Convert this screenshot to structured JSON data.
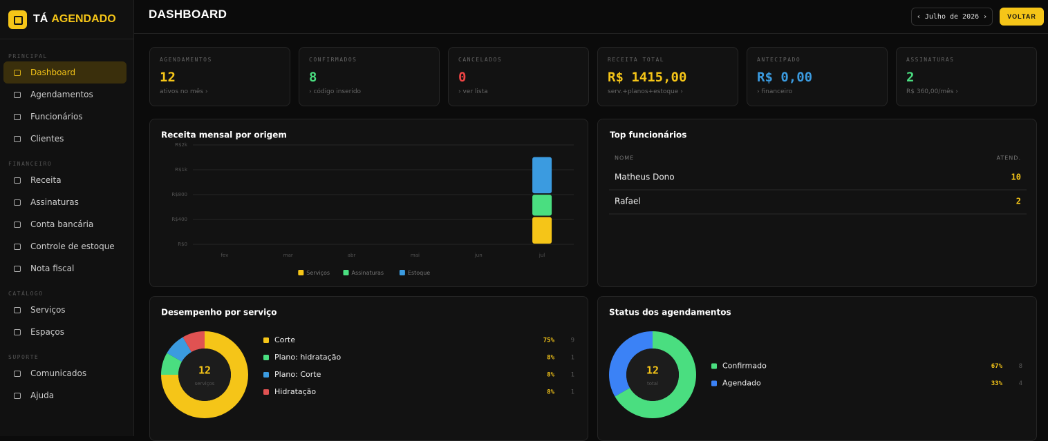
{
  "sidebar": {
    "brand": {
      "prefix": "TÁ",
      "name": "AGENDADO"
    },
    "sections": [
      {
        "title": "PRINCIPAL",
        "items": [
          "Dashboard",
          "Agendamentos",
          "Funcionários",
          "Clientes"
        ]
      },
      {
        "title": "FINANCEIRO",
        "items": [
          "Receita",
          "Assinaturas",
          "Conta bancária",
          "Controle de estoque",
          "Nota fiscal"
        ]
      },
      {
        "title": "CATÁLOGO",
        "items": [
          "Serviços",
          "Espaços"
        ]
      },
      {
        "title": "SUPORTE",
        "items": [
          "Comunicados",
          "Ajuda"
        ]
      }
    ]
  },
  "header": {
    "title": "DASHBOARD",
    "period": "Julho de 2026",
    "button": "VOLTAR"
  },
  "kpis": [
    {
      "label": "AGENDAMENTOS",
      "value": "12",
      "sub": "ativos no mês ›",
      "color": "#f5c518"
    },
    {
      "label": "CONFIRMADOS",
      "value": "8",
      "sub": "› código inserido",
      "color": "#4ade80"
    },
    {
      "label": "CANCELADOS",
      "value": "0",
      "sub": "› ver lista",
      "color": "#ef4444"
    },
    {
      "label": "RECEITA TOTAL",
      "value": "R$ 1415,00",
      "sub": "serv.+planos+estoque ›",
      "color": "#f5c518"
    },
    {
      "label": "ANTECIPADO",
      "value": "R$ 0,00",
      "sub": "› financeiro",
      "color": "#3b9be0"
    },
    {
      "label": "ASSINATURAS",
      "value": "2",
      "sub": "R$ 360,00/mês ›",
      "color": "#4ade80"
    }
  ],
  "top_employees": {
    "title": "Top funcionários",
    "columns": [
      "NOME",
      "ATEND."
    ],
    "rows": [
      [
        "Matheus Dono",
        "10"
      ],
      [
        "Rafael",
        "2"
      ]
    ]
  },
  "chart_data": [
    {
      "type": "bar",
      "stacked": true,
      "title": "Receita mensal por origem",
      "categories": [
        "fev",
        "mar",
        "abr",
        "mai",
        "jun",
        "jul"
      ],
      "series": [
        {
          "name": "Serviços",
          "color": "#f5c518",
          "values": [
            0,
            0,
            0,
            0,
            0,
            450
          ]
        },
        {
          "name": "Assinaturas",
          "color": "#4ade80",
          "values": [
            0,
            0,
            0,
            0,
            0,
            360
          ]
        },
        {
          "name": "Estoque",
          "color": "#3b9be0",
          "values": [
            0,
            0,
            0,
            0,
            0,
            605
          ]
        }
      ],
      "ylim": [
        0,
        1600
      ],
      "yticks": [
        {
          "value": 0,
          "label": "R$0"
        },
        {
          "value": 400,
          "label": "R$400"
        },
        {
          "value": 800,
          "label": "R$800"
        },
        {
          "value": 1200,
          "label": "R$1k"
        },
        {
          "value": 1600,
          "label": "R$2k"
        }
      ],
      "grid": true,
      "legend": "bottom"
    },
    {
      "type": "donut",
      "title": "Desempenho por serviço",
      "categories": [
        "Corte",
        "Plano: hidratação",
        "Plano: Corte",
        "Hidratação"
      ],
      "values": [
        9,
        1,
        1,
        1
      ],
      "percent_labels": [
        "75%",
        "8%",
        "8%",
        "8%"
      ],
      "colors": [
        "#f5c518",
        "#4ade80",
        "#3b9be0",
        "#e05252"
      ],
      "center_value": 12,
      "center_label": "serviços"
    },
    {
      "type": "donut",
      "title": "Status dos agendamentos",
      "categories": [
        "Confirmado",
        "Agendado"
      ],
      "values": [
        8,
        4
      ],
      "percent_labels": [
        "67%",
        "33%"
      ],
      "colors": [
        "#4ade80",
        "#3b82f6"
      ],
      "center_value": 12,
      "center_label": "total"
    }
  ]
}
